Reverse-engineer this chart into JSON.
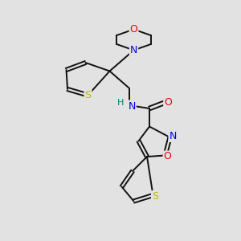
{
  "bg_color": "#e2e2e2",
  "atom_colors": {
    "N": "#0000ee",
    "O": "#ee0000",
    "S": "#bbbb00",
    "H": "#008080"
  },
  "bond_color": "#111111",
  "bond_width": 1.4
}
